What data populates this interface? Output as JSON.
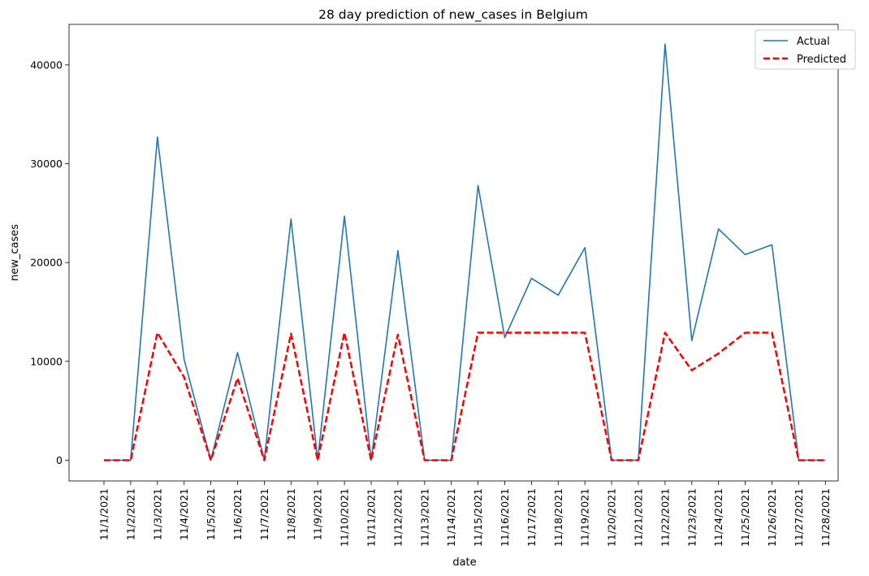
{
  "chart_data": {
    "type": "line",
    "title": "28 day prediction of new_cases in Belgium",
    "xlabel": "date",
    "ylabel": "new_cases",
    "categories": [
      "11/1/2021",
      "11/2/2021",
      "11/3/2021",
      "11/4/2021",
      "11/5/2021",
      "11/6/2021",
      "11/7/2021",
      "11/8/2021",
      "11/9/2021",
      "11/10/2021",
      "11/11/2021",
      "11/12/2021",
      "11/13/2021",
      "11/14/2021",
      "11/15/2021",
      "11/16/2021",
      "11/17/2021",
      "11/18/2021",
      "11/19/2021",
      "11/20/2021",
      "11/21/2021",
      "11/22/2021",
      "11/23/2021",
      "11/24/2021",
      "11/25/2021",
      "11/26/2021",
      "11/27/2021",
      "11/28/2021"
    ],
    "ylim": [
      -2100,
      44100
    ],
    "yticks": [
      0,
      10000,
      20000,
      30000,
      40000
    ],
    "grid": false,
    "legend_position": "top-right",
    "series": [
      {
        "name": "Actual",
        "color": "#1f77b4",
        "style": "solid",
        "values": [
          0,
          0,
          32700,
          10200,
          0,
          10900,
          0,
          24400,
          0,
          24700,
          0,
          21200,
          0,
          0,
          27800,
          12400,
          18400,
          16700,
          21500,
          0,
          0,
          42100,
          12100,
          23400,
          20800,
          21800,
          0,
          0
        ]
      },
      {
        "name": "Predicted",
        "color": "#ff0000",
        "style": "dashed",
        "values": [
          0,
          0,
          12900,
          8400,
          0,
          8300,
          0,
          12800,
          0,
          12900,
          0,
          12700,
          0,
          0,
          12900,
          12900,
          12900,
          12900,
          12900,
          0,
          0,
          12900,
          9100,
          10800,
          12900,
          12900,
          0,
          0
        ]
      }
    ]
  }
}
